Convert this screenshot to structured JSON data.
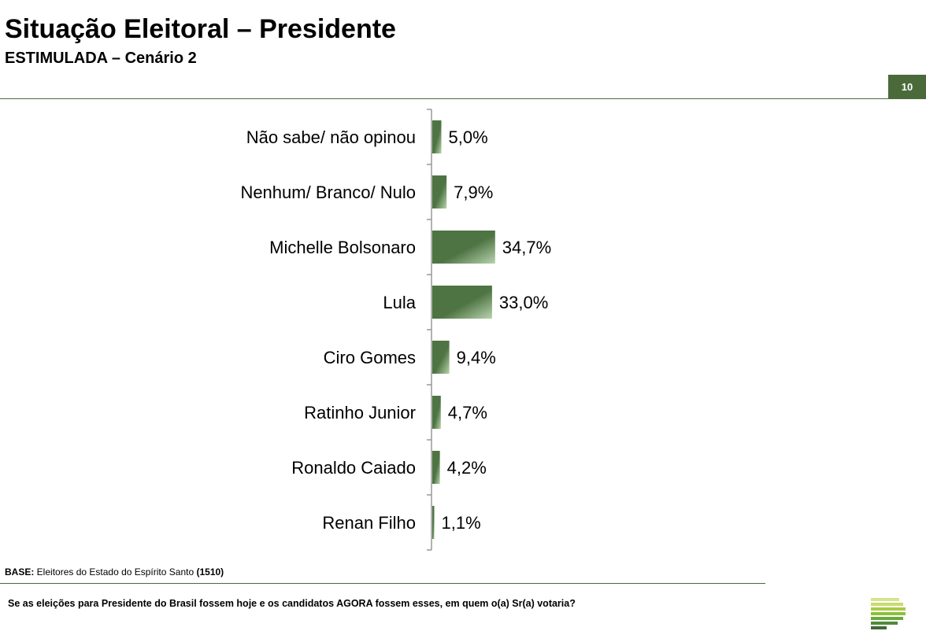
{
  "header": {
    "title": "Situação Eleitoral – Presidente",
    "subtitle": "ESTIMULADA – Cenário 2",
    "page_number": "10"
  },
  "footer": {
    "base_label": "BASE:",
    "base_text": " Eleitores do Estado do Espírito Santo ",
    "base_count": "(1510)",
    "question": "Se as eleições para Presidente do Brasil fossem hoje e os candidatos AGORA fossem esses, em quem o(a) Sr(a) votaria?"
  },
  "colors": {
    "accent": "#4a6a3a",
    "bar": "#4e7443",
    "bar_highlight": "#b9d3ae"
  },
  "chart_data": {
    "type": "bar",
    "orientation": "horizontal",
    "categories": [
      "Não sabe/ não opinou",
      "Nenhum/ Branco/ Nulo",
      "Michelle Bolsonaro",
      "Lula",
      "Ciro Gomes",
      "Ratinho Junior",
      "Ronaldo Caiado",
      "Renan Filho"
    ],
    "values": [
      5.0,
      7.9,
      34.7,
      33.0,
      9.4,
      4.7,
      4.2,
      1.1
    ],
    "labels": [
      "5,0%",
      "7,9%",
      "34,7%",
      "33,0%",
      "9,4%",
      "4,7%",
      "4,2%",
      "1,1%"
    ],
    "unit": "%",
    "xlim": [
      0,
      100
    ],
    "grid": false
  }
}
